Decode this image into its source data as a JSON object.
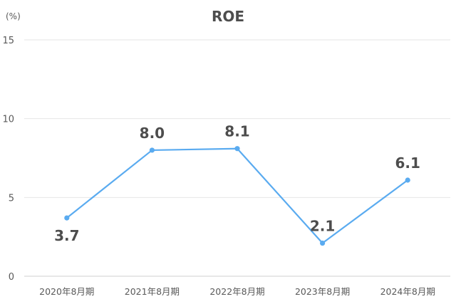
{
  "chart_data": {
    "type": "line",
    "title": "ROE",
    "unit_label": "(%)",
    "xlabel": "",
    "ylabel": "",
    "categories": [
      "2020年8月期",
      "2021年8月期",
      "2022年8月期",
      "2023年8月期",
      "2024年8月期"
    ],
    "series": [
      {
        "values": [
          3.7,
          8.0,
          8.1,
          2.1,
          6.1
        ]
      }
    ],
    "data_labels": [
      "3.7",
      "8.0",
      "8.1",
      "2.1",
      "6.1"
    ],
    "ylim": [
      0,
      15
    ],
    "yticks": [
      0,
      5,
      10,
      15
    ],
    "ytick_labels": [
      "0",
      "5",
      "10",
      "15"
    ],
    "grid": true,
    "legend": "none",
    "line_color": "#5aabf0"
  }
}
